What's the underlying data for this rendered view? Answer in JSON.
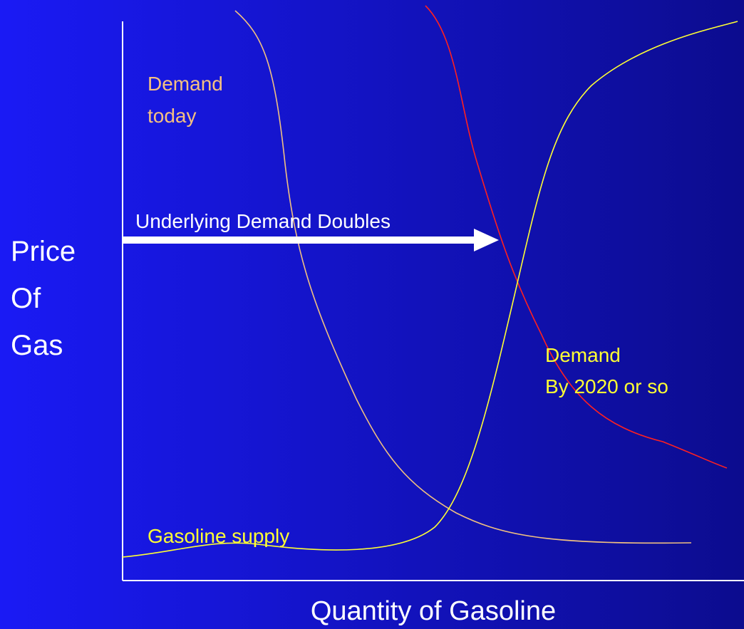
{
  "axis_labels": {
    "y": [
      "Price",
      "Of",
      "Gas"
    ],
    "x": "Quantity of Gasoline"
  },
  "annotations": {
    "demand_today": [
      "Demand",
      "today"
    ],
    "shift": "Underlying Demand Doubles",
    "demand_2020": [
      "Demand",
      "By 2020 or so"
    ],
    "supply": "Gasoline supply"
  }
}
